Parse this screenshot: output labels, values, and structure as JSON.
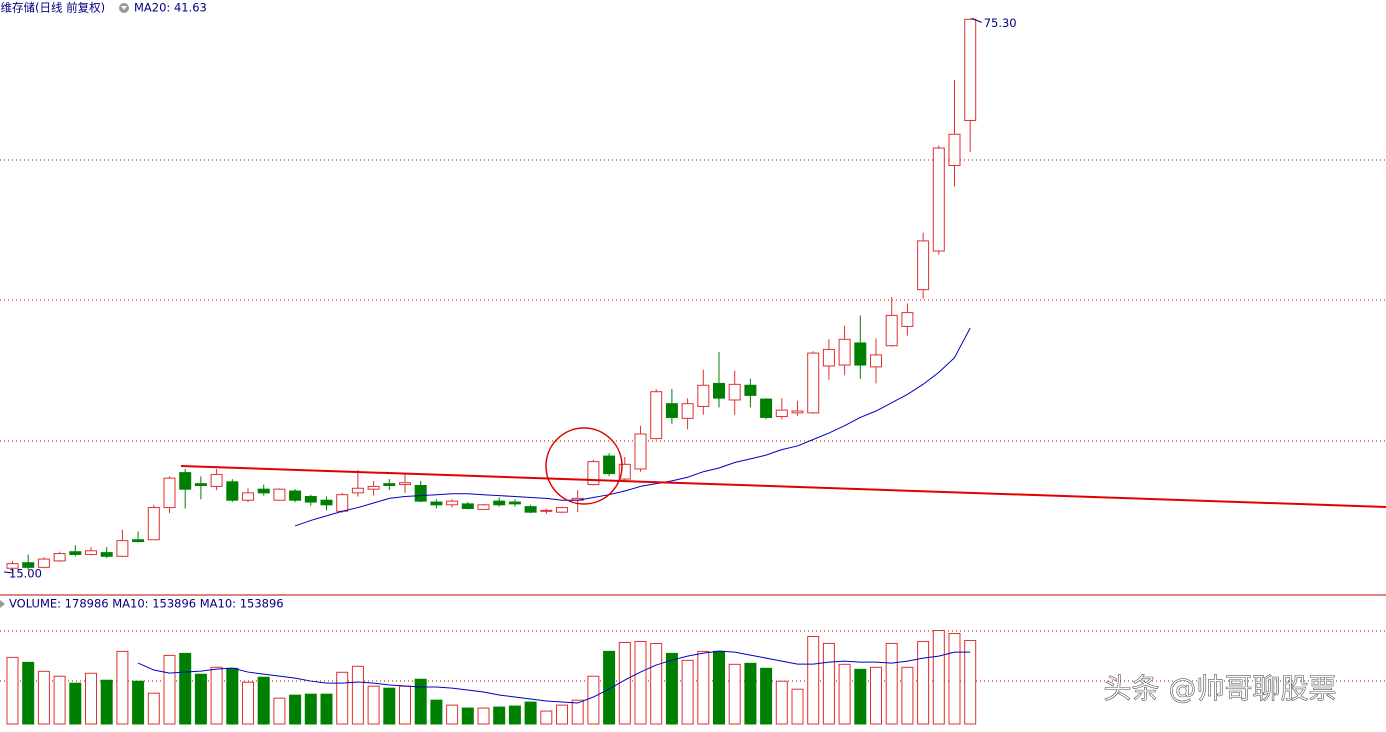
{
  "chart_data": {
    "type": "candlestick",
    "title": "佰维存储(日线 前复权)",
    "ma_label": "MA20: 41.63",
    "volume_label": "VOLUME: 178986 MA10: 153896 MA10: 153896",
    "watermark": "头条 @帅哥聊股票",
    "high_label": "75.30",
    "low_label": "15.00",
    "up_color": "#e03030",
    "down_color": "#008000",
    "ma_color": "#0000c0",
    "ylim": [
      12.7,
      77.3
    ],
    "volume_ylim": [
      0,
      240000
    ],
    "open": [
      15.5,
      16.1,
      15.6,
      16.3,
      17.3,
      17.0,
      17.2,
      16.8,
      18.6,
      18.6,
      22.1,
      25.9,
      24.7,
      24.4,
      24.9,
      22.9,
      24.1,
      22.9,
      23.9,
      23.3,
      22.9,
      21.7,
      23.7,
      24.1,
      24.7,
      24.6,
      24.5,
      22.7,
      22.4,
      22.5,
      21.9,
      22.8,
      22.7,
      22.2,
      21.7,
      21.6,
      22.9,
      24.6,
      27.7,
      25.2,
      26.3,
      29.6,
      33.4,
      31.8,
      33.1,
      35.6,
      33.8,
      35.4,
      33.9,
      32.0,
      32.4,
      32.4,
      37.5,
      37.6,
      40.0,
      37.4,
      39.7,
      41.8,
      45.8,
      50.0,
      59.3,
      64.2
    ],
    "high": [
      16.3,
      17.0,
      16.7,
      17.3,
      18.0,
      17.8,
      17.8,
      19.7,
      19.5,
      22.4,
      25.5,
      26.3,
      25.5,
      26.3,
      25.2,
      24.2,
      24.6,
      24.2,
      24.1,
      23.5,
      23.3,
      23.7,
      26.2,
      25.0,
      25.2,
      25.7,
      25.0,
      23.0,
      23.0,
      22.7,
      22.5,
      23.2,
      23.0,
      22.4,
      22.0,
      22.2,
      24.0,
      27.3,
      28.0,
      27.6,
      31.0,
      35.0,
      35.0,
      34.0,
      37.1,
      39.0,
      37.0,
      36.1,
      34.0,
      34.0,
      33.7,
      39.1,
      40.4,
      41.9,
      43.0,
      40.5,
      45.0,
      44.3,
      52.0,
      61.5,
      68.6,
      75.3
    ],
    "low": [
      15.0,
      15.3,
      15.5,
      16.2,
      16.8,
      16.9,
      16.6,
      16.7,
      18.3,
      18.6,
      21.5,
      22.0,
      23.0,
      24.0,
      22.7,
      22.7,
      23.4,
      22.9,
      22.7,
      22.3,
      21.8,
      21.5,
      23.3,
      23.4,
      24.0,
      23.7,
      22.7,
      22.0,
      22.1,
      21.9,
      21.9,
      22.2,
      22.2,
      21.5,
      21.4,
      21.5,
      21.6,
      24.5,
      25.5,
      24.9,
      26.0,
      29.5,
      31.2,
      30.6,
      32.2,
      33.0,
      32.2,
      33.0,
      31.7,
      31.7,
      32.1,
      32.3,
      36.0,
      36.5,
      36.1,
      35.6,
      39.6,
      40.8,
      44.8,
      49.6,
      57.0,
      60.8
    ],
    "close": [
      16.0,
      15.6,
      16.5,
      17.1,
      17.0,
      17.4,
      16.8,
      18.5,
      18.4,
      22.1,
      25.3,
      24.1,
      24.5,
      25.7,
      22.9,
      23.7,
      23.7,
      24.1,
      22.9,
      22.7,
      22.4,
      23.5,
      24.2,
      24.4,
      24.5,
      24.8,
      22.8,
      22.4,
      22.8,
      22.0,
      22.4,
      22.4,
      22.5,
      21.6,
      21.8,
      22.1,
      23.1,
      27.1,
      25.8,
      26.8,
      30.1,
      34.7,
      31.9,
      33.4,
      35.4,
      34.0,
      35.5,
      34.3,
      31.9,
      32.7,
      32.6,
      38.9,
      39.3,
      40.4,
      37.6,
      38.7,
      43.0,
      43.3,
      51.1,
      61.2,
      62.7,
      75.2
    ],
    "ma20": [
      null,
      null,
      null,
      null,
      null,
      null,
      null,
      null,
      null,
      null,
      null,
      null,
      null,
      null,
      null,
      null,
      null,
      null,
      20.1,
      20.7,
      21.2,
      21.7,
      22.1,
      22.6,
      23.1,
      23.3,
      23.4,
      23.5,
      23.6,
      23.6,
      23.5,
      23.4,
      23.3,
      23.2,
      23.1,
      22.9,
      22.9,
      23.2,
      23.5,
      23.9,
      24.4,
      24.7,
      25.0,
      25.4,
      26.0,
      26.4,
      27.0,
      27.4,
      27.8,
      28.4,
      28.8,
      29.5,
      30.2,
      31.0,
      31.9,
      32.6,
      33.5,
      34.4,
      35.5,
      36.8,
      38.4,
      41.63
    ],
    "volume": [
      142800,
      132100,
      112900,
      102300,
      87400,
      108700,
      93800,
      155600,
      91600,
      66100,
      147000,
      151300,
      106600,
      121500,
      119300,
      89500,
      100200,
      55400,
      61800,
      63900,
      63900,
      110800,
      123600,
      81000,
      76700,
      81000,
      95900,
      51100,
      40500,
      34100,
      34100,
      36200,
      38400,
      46900,
      27700,
      40500,
      51100,
      102300,
      155600,
      174700,
      176900,
      172600,
      151300,
      136400,
      155600,
      155600,
      127900,
      130000,
      119300,
      91600,
      74600,
      187500,
      172600,
      127900,
      117200,
      121500,
      172600,
      121500,
      176900,
      200300,
      193900,
      178986
    ],
    "volume_ma10": [
      null,
      null,
      null,
      null,
      null,
      null,
      null,
      null,
      130500,
      115600,
      109100,
      111300,
      113400,
      117700,
      119800,
      111300,
      107000,
      102700,
      98400,
      92000,
      87700,
      87700,
      89900,
      87700,
      83500,
      81300,
      79200,
      79200,
      77000,
      72800,
      68500,
      62100,
      57800,
      53500,
      49200,
      47100,
      44900,
      57800,
      74900,
      94200,
      111300,
      126300,
      137000,
      145500,
      151900,
      156200,
      154100,
      147700,
      141200,
      134800,
      128400,
      128400,
      132700,
      134800,
      132700,
      132700,
      130500,
      134800,
      141200,
      145500,
      154100,
      153896
    ]
  }
}
